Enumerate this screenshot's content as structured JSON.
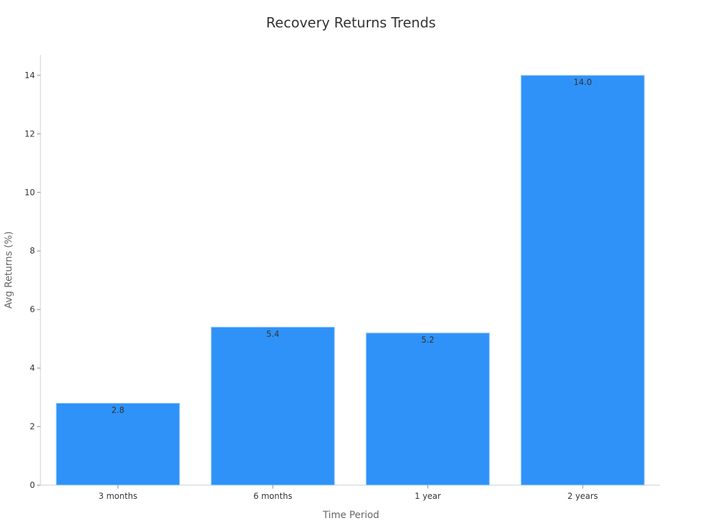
{
  "chart_data": {
    "type": "bar",
    "title": "Recovery Returns Trends",
    "xlabel": "Time Period",
    "ylabel": "Avg Returns (%)",
    "categories": [
      "3 months",
      "6 months",
      "1 year",
      "2 years"
    ],
    "values": [
      2.8,
      5.4,
      5.2,
      14.0
    ],
    "data_labels": [
      "2.8",
      "5.4",
      "5.2",
      "14.0"
    ],
    "ylim": [
      0,
      14.7
    ],
    "yticks": [
      0,
      2,
      4,
      6,
      8,
      10,
      12,
      14
    ],
    "grid": false,
    "bar_color": "#2f92f8",
    "bar_edge_color": "#a9d0fb"
  }
}
